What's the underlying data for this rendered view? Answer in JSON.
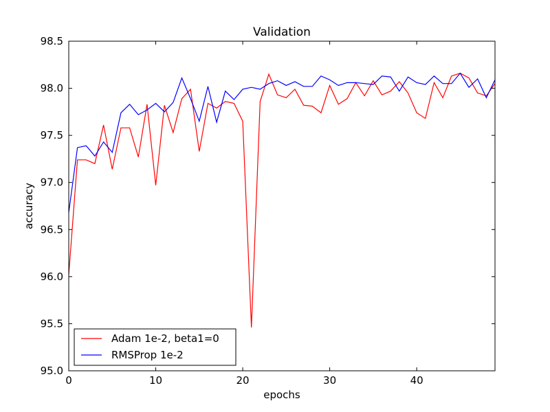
{
  "chart_data": {
    "type": "line",
    "title": "Validation",
    "xlabel": "epochs",
    "ylabel": "accuracy",
    "xlim": [
      0,
      49
    ],
    "ylim": [
      95.0,
      98.5
    ],
    "xticks": [
      0,
      10,
      20,
      30,
      40
    ],
    "xtick_labels": [
      "0",
      "10",
      "20",
      "30",
      "40"
    ],
    "yticks": [
      95.0,
      95.5,
      96.0,
      96.5,
      97.0,
      97.5,
      98.0,
      98.5
    ],
    "ytick_labels": [
      "95.0",
      "95.5",
      "96.0",
      "96.5",
      "97.0",
      "97.5",
      "98.0",
      "98.5"
    ],
    "grid": false,
    "legend_position": "lower-left",
    "x": [
      0,
      1,
      2,
      3,
      4,
      5,
      6,
      7,
      8,
      9,
      10,
      11,
      12,
      13,
      14,
      15,
      16,
      17,
      18,
      19,
      20,
      21,
      22,
      23,
      24,
      25,
      26,
      27,
      28,
      29,
      30,
      31,
      32,
      33,
      34,
      35,
      36,
      37,
      38,
      39,
      40,
      41,
      42,
      43,
      44,
      45,
      46,
      47,
      48,
      49
    ],
    "series": [
      {
        "name": "Adam 1e-2, beta1=0",
        "color": "#ff0000",
        "values": [
          96.02,
          97.24,
          97.24,
          97.2,
          97.61,
          97.14,
          97.58,
          97.58,
          97.27,
          97.83,
          96.97,
          97.82,
          97.53,
          97.89,
          97.99,
          97.33,
          97.84,
          97.79,
          97.86,
          97.84,
          97.65,
          95.46,
          97.86,
          98.15,
          97.93,
          97.9,
          97.99,
          97.82,
          97.81,
          97.74,
          98.03,
          97.83,
          97.89,
          98.06,
          97.92,
          98.08,
          97.93,
          97.97,
          98.07,
          97.95,
          97.74,
          97.68,
          98.06,
          97.9,
          98.13,
          98.16,
          98.11,
          97.95,
          97.92,
          98.05
        ]
      },
      {
        "name": "RMSProp 1e-2",
        "color": "#0000ff",
        "values": [
          96.68,
          97.37,
          97.39,
          97.28,
          97.43,
          97.32,
          97.74,
          97.83,
          97.72,
          97.77,
          97.84,
          97.75,
          97.85,
          98.11,
          97.89,
          97.65,
          98.02,
          97.64,
          97.97,
          97.88,
          97.99,
          98.01,
          97.99,
          98.05,
          98.08,
          98.03,
          98.07,
          98.02,
          98.02,
          98.13,
          98.09,
          98.03,
          98.06,
          98.06,
          98.05,
          98.04,
          98.13,
          98.12,
          97.97,
          98.12,
          98.06,
          98.04,
          98.13,
          98.05,
          98.05,
          98.16,
          98.01,
          98.1,
          97.9,
          98.09
        ]
      }
    ]
  }
}
